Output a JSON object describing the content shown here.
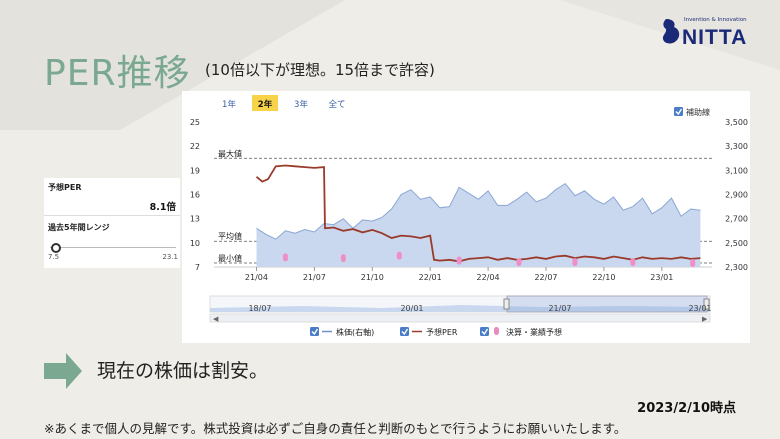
{
  "slide": {
    "title": "PER推移",
    "subtitle": "(10倍以下が理想。15倍まで許容)",
    "conclusion": "現在の株価は割安。",
    "as_of": "2023/2/10時点",
    "disclaimer": "※あくまで個人の見解です。株式投資は必ずご自身の責任と判断のもとで行うようにお願いいたします。"
  },
  "logo": {
    "tagline": "Invention & Innovation",
    "name": "NITTA",
    "brand_color": "#1b2a78"
  },
  "side_panel": {
    "forecast_per_label": "予想PER",
    "forecast_per_value": "8.1倍",
    "range_label": "過去5年間レンジ",
    "range_min": "7.5",
    "range_max": "23.1",
    "range_position": 0.04
  },
  "chart_controls": {
    "period_tabs": [
      {
        "label": "1年",
        "active": false
      },
      {
        "label": "2年",
        "active": true
      },
      {
        "label": "3年",
        "active": false
      },
      {
        "label": "全て",
        "active": false
      }
    ],
    "auxiliary_line_label": "補助線",
    "auxiliary_line_checked": true
  },
  "legend": [
    {
      "label": "株価(右軸)",
      "checked": true,
      "color": "#6f8fc7"
    },
    {
      "label": "予想PER",
      "checked": true,
      "color": "#9a3a2a"
    },
    {
      "label": "決算・業績予想",
      "checked": true,
      "color": "#e88ac0"
    }
  ],
  "colors": {
    "accent": "#7aa891",
    "per_line": "#9a3a2a",
    "price_fill": "#c9d8ef",
    "price_line": "#8aa6d3",
    "marker": "#f08fc6",
    "active_tab": "#f7d34a"
  },
  "chart_data": {
    "type": "line",
    "x_tick_labels": [
      "21/04",
      "21/07",
      "21/10",
      "22/01",
      "22/04",
      "22/07",
      "22/10",
      "23/01"
    ],
    "left_axis": {
      "label": "",
      "ylim": [
        7,
        25
      ],
      "ticks": [
        7,
        10,
        13,
        16,
        19,
        22,
        25
      ]
    },
    "right_axis": {
      "label": "",
      "ylim": [
        2300,
        3500
      ],
      "ticks": [
        "2,300",
        "2,500",
        "2,700",
        "2,900",
        "3,100",
        "3,300",
        "3,500"
      ]
    },
    "reference_lines": [
      {
        "label": "最大値",
        "value": 20.5
      },
      {
        "label": "平均値",
        "value": 10.2
      },
      {
        "label": "最小値",
        "value": 7.5
      }
    ],
    "series": [
      {
        "name": "株価(右軸)",
        "axis": "right",
        "months": [
          0,
          0.5,
          1,
          1.5,
          2,
          2.5,
          3,
          3.5,
          4,
          4.5,
          5,
          5.5,
          6,
          6.5,
          7,
          7.5,
          8,
          8.5,
          9,
          9.5,
          10,
          10.5,
          11,
          11.5,
          12,
          12.5,
          13,
          13.5,
          14,
          14.5,
          15,
          15.5,
          16,
          16.5,
          17,
          17.5,
          18,
          18.5,
          19,
          19.5,
          20,
          20.5,
          21,
          21.5,
          22,
          22.5,
          23
        ],
        "values": [
          2620,
          2570,
          2530,
          2600,
          2580,
          2610,
          2590,
          2660,
          2650,
          2700,
          2620,
          2690,
          2680,
          2710,
          2780,
          2900,
          2940,
          2860,
          2880,
          2790,
          2800,
          2960,
          2910,
          2860,
          2930,
          2810,
          2810,
          2860,
          2920,
          2840,
          2870,
          2940,
          2990,
          2890,
          2930,
          2860,
          2820,
          2880,
          2770,
          2800,
          2870,
          2740,
          2790,
          2870,
          2720,
          2780,
          2770
        ]
      },
      {
        "name": "予想PER",
        "axis": "left",
        "months": [
          0,
          0.3,
          0.6,
          1,
          1.5,
          2,
          2.5,
          3,
          3.5,
          3.55,
          4,
          4.5,
          5,
          5.5,
          6,
          6.5,
          7,
          7.5,
          8,
          8.5,
          9,
          9.2,
          9.5,
          10,
          10.5,
          11,
          11.5,
          12,
          12.5,
          13,
          13.5,
          14,
          14.5,
          15,
          15.5,
          16,
          16.5,
          17,
          17.5,
          18,
          18.5,
          19,
          19.5,
          20,
          20.5,
          21,
          21.5,
          22,
          22.5,
          23
        ],
        "values": [
          18.2,
          17.6,
          17.9,
          19.5,
          19.6,
          19.5,
          19.4,
          19.3,
          19.4,
          11.8,
          11.9,
          11.5,
          11.7,
          11.3,
          11.6,
          11.2,
          10.6,
          10.9,
          10.8,
          10.6,
          10.9,
          7.9,
          7.8,
          7.9,
          7.7,
          8.0,
          8.1,
          8.2,
          7.9,
          8.1,
          7.9,
          8.0,
          8.2,
          8.0,
          8.3,
          8.4,
          8.1,
          8.3,
          8.2,
          8.0,
          8.3,
          8.1,
          7.9,
          8.2,
          8.0,
          8.1,
          8.0,
          8.2,
          8.0,
          8.1
        ]
      },
      {
        "name": "決算・業績予想",
        "axis": "left",
        "months": [
          1.5,
          4.5,
          7.4,
          10.5,
          13.6,
          16.5,
          19.5,
          22.6
        ],
        "values": [
          8.2,
          8.1,
          8.4,
          7.8,
          7.6,
          7.6,
          7.6,
          7.5
        ]
      }
    ],
    "navigator_labels": [
      "18/07",
      "20/01",
      "21/07",
      "23/01"
    ],
    "grid": false,
    "legend_position": "bottom"
  }
}
